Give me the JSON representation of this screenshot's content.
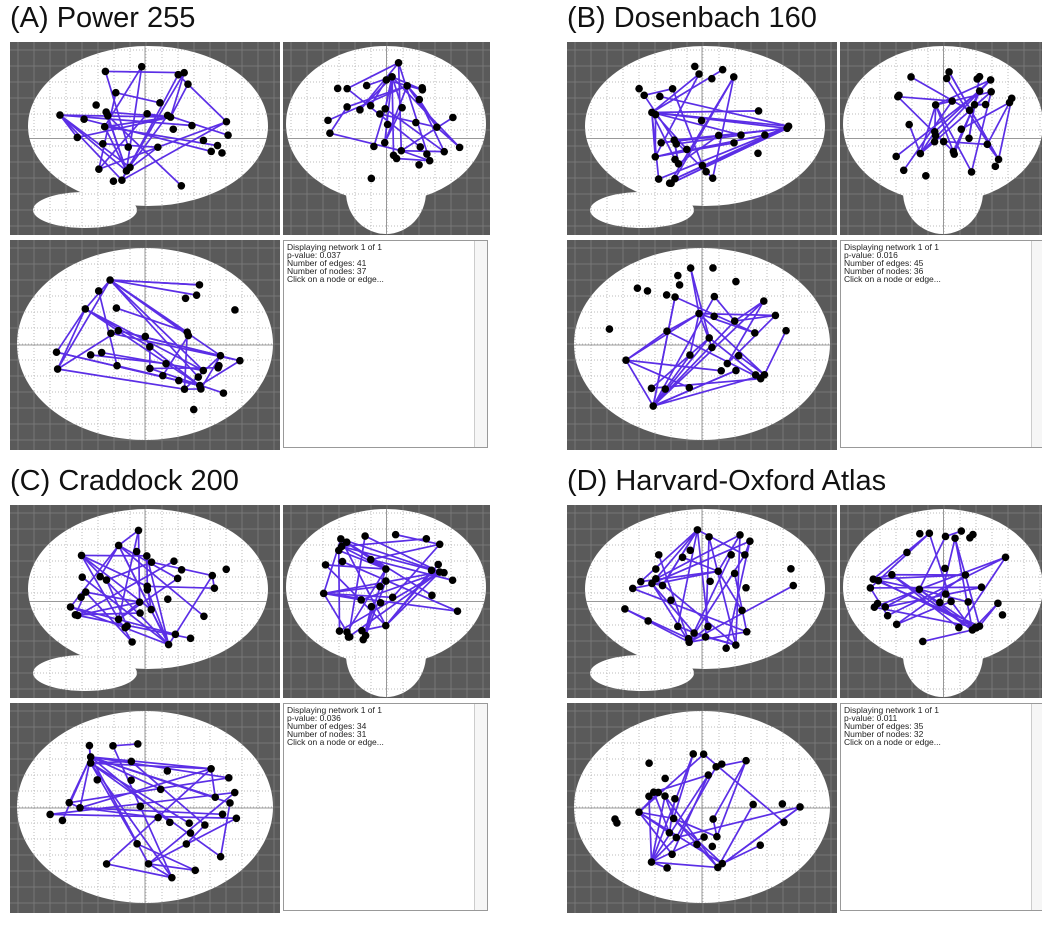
{
  "panels": [
    {
      "title": "(A) Power 255",
      "info": [
        "Displaying network 1 of 1",
        "p-value: 0.037",
        "Number of edges: 41",
        "Number of nodes: 37",
        "Click on a node or edge..."
      ]
    },
    {
      "title": "(B) Dosenbach 160",
      "info": [
        "Displaying network 1 of 1",
        "p-value: 0.016",
        "Number of edges: 45",
        "Number of nodes: 36",
        "Click on a node or edge..."
      ]
    },
    {
      "title": "(C) Craddock 200",
      "info": [
        "Displaying network 1 of 1",
        "p-value: 0.036",
        "Number of edges: 34",
        "Number of nodes: 31",
        "Click on a node or edge..."
      ]
    },
    {
      "title": "(D) Harvard-Oxford Atlas",
      "info": [
        "Displaying network 1 of 1",
        "p-value: 0.011",
        "Number of edges: 35",
        "Number of nodes: 32",
        "Click on a node or edge..."
      ]
    }
  ]
}
